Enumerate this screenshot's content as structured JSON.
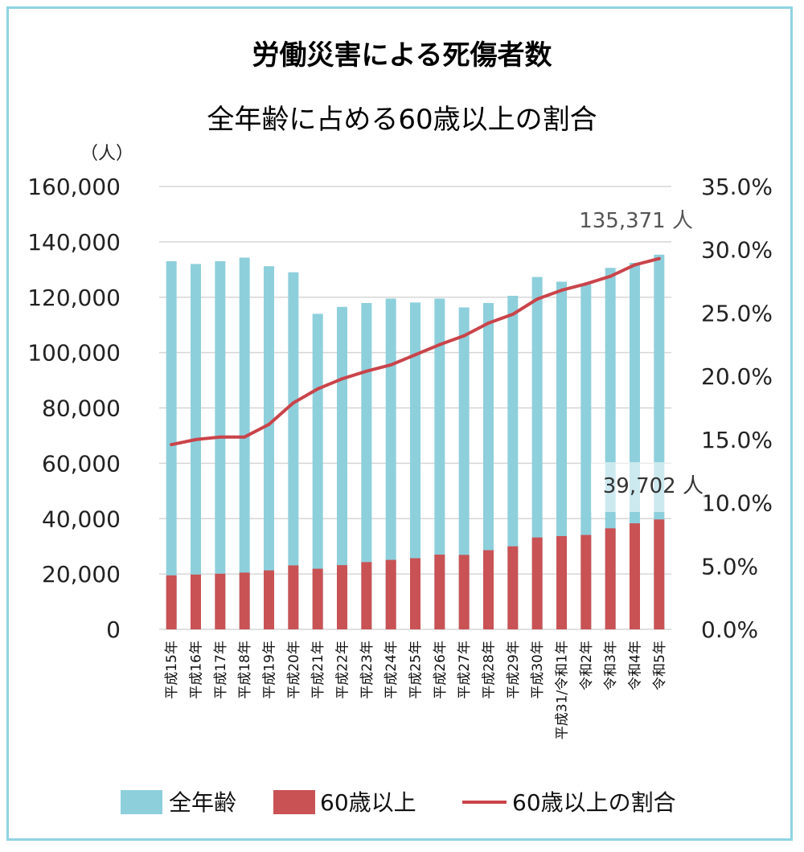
{
  "chart_data": {
    "type": "bar+line",
    "title": "労働災害による死傷者数",
    "subtitle": "全年齢に占める60歳以上の割合",
    "y_unit": "（人）",
    "categories": [
      "平成15年",
      "平成16年",
      "平成17年",
      "平成18年",
      "平成19年",
      "平成20年",
      "平成21年",
      "平成22年",
      "平成23年",
      "平成24年",
      "平成25年",
      "平成26年",
      "平成27年",
      "平成28年",
      "平成29年",
      "平成30年",
      "平成31/令和1年",
      "令和2年",
      "令和3年",
      "令和4年",
      "令和5年"
    ],
    "series": [
      {
        "name": "全年齢",
        "type": "bar",
        "axis": "left",
        "color": "#8ecfdc",
        "values": [
          133000,
          132000,
          133000,
          134300,
          131200,
          129000,
          114000,
          116500,
          117900,
          119500,
          118100,
          119500,
          116300,
          117900,
          120500,
          127300,
          125600,
          124700,
          130600,
          132400,
          135371
        ]
      },
      {
        "name": "60歳以上",
        "type": "bar",
        "axis": "left",
        "color": "#c95254",
        "values": [
          19500,
          19800,
          20100,
          20500,
          21300,
          23100,
          21900,
          23200,
          24300,
          25100,
          25700,
          27000,
          26900,
          28600,
          30000,
          33200,
          33700,
          34100,
          36500,
          38300,
          39702
        ]
      },
      {
        "name": "60歳以上の割合",
        "type": "line",
        "axis": "right",
        "color": "#c9444a",
        "values": [
          14.6,
          15.0,
          15.2,
          15.2,
          16.2,
          17.9,
          19.0,
          19.8,
          20.4,
          20.9,
          21.7,
          22.5,
          23.2,
          24.2,
          24.9,
          26.1,
          26.8,
          27.3,
          27.9,
          28.8,
          29.3
        ]
      }
    ],
    "y_left": {
      "min": 0,
      "max": 160000,
      "ticks": [
        "0",
        "20,000",
        "40,000",
        "60,000",
        "80,000",
        "100,000",
        "120,000",
        "140,000",
        "160,000"
      ]
    },
    "y_right": {
      "min": 0,
      "max": 35,
      "ticks": [
        "0.0%",
        "5.0%",
        "10.0%",
        "15.0%",
        "20.0%",
        "25.0%",
        "30.0%",
        "35.0%"
      ]
    },
    "annotations": {
      "total_last": "135,371 人",
      "senior_last": "39,702 人"
    },
    "grid": true,
    "legend_position": "bottom"
  }
}
